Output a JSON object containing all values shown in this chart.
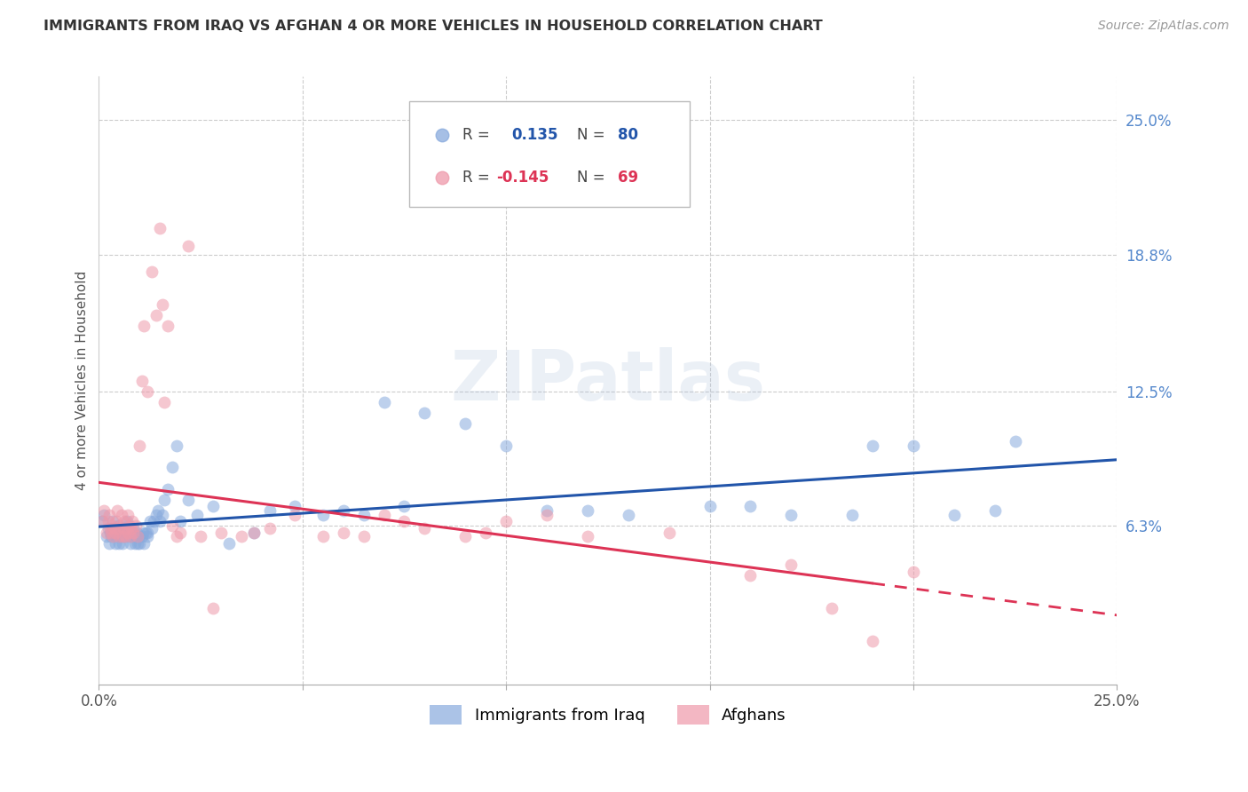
{
  "title": "IMMIGRANTS FROM IRAQ VS AFGHAN 4 OR MORE VEHICLES IN HOUSEHOLD CORRELATION CHART",
  "source": "Source: ZipAtlas.com",
  "ylabel": "4 or more Vehicles in Household",
  "xlim": [
    0.0,
    0.25
  ],
  "ylim": [
    -0.01,
    0.27
  ],
  "yticks": [
    0.063,
    0.125,
    0.188,
    0.25
  ],
  "ytick_labels": [
    "6.3%",
    "12.5%",
    "18.8%",
    "25.0%"
  ],
  "iraq_color": "#88aadd",
  "afghan_color": "#ee99aa",
  "iraq_line_color": "#2255aa",
  "afghan_line_color": "#dd3355",
  "watermark": "ZIPatlas",
  "iraq_x": [
    0.0008,
    0.0012,
    0.0018,
    0.0022,
    0.0025,
    0.0028,
    0.003,
    0.0032,
    0.0035,
    0.0038,
    0.004,
    0.0042,
    0.0045,
    0.0048,
    0.005,
    0.0052,
    0.0055,
    0.0058,
    0.006,
    0.0062,
    0.0065,
    0.0068,
    0.007,
    0.0072,
    0.0075,
    0.0078,
    0.008,
    0.0082,
    0.0085,
    0.0088,
    0.009,
    0.0092,
    0.0095,
    0.0098,
    0.01,
    0.0105,
    0.0108,
    0.011,
    0.0115,
    0.0118,
    0.012,
    0.0125,
    0.013,
    0.0135,
    0.014,
    0.0145,
    0.015,
    0.0155,
    0.016,
    0.017,
    0.018,
    0.019,
    0.02,
    0.022,
    0.024,
    0.028,
    0.032,
    0.038,
    0.042,
    0.048,
    0.06,
    0.065,
    0.075,
    0.09,
    0.1,
    0.11,
    0.13,
    0.15,
    0.17,
    0.185,
    0.2,
    0.21,
    0.22,
    0.055,
    0.07,
    0.08,
    0.12,
    0.16,
    0.19,
    0.225
  ],
  "iraq_y": [
    0.065,
    0.068,
    0.058,
    0.062,
    0.055,
    0.06,
    0.058,
    0.06,
    0.065,
    0.062,
    0.055,
    0.058,
    0.06,
    0.063,
    0.055,
    0.058,
    0.06,
    0.055,
    0.058,
    0.06,
    0.062,
    0.065,
    0.063,
    0.058,
    0.06,
    0.055,
    0.058,
    0.06,
    0.062,
    0.055,
    0.058,
    0.06,
    0.055,
    0.058,
    0.055,
    0.058,
    0.06,
    0.055,
    0.06,
    0.058,
    0.06,
    0.065,
    0.062,
    0.065,
    0.068,
    0.07,
    0.065,
    0.068,
    0.075,
    0.08,
    0.09,
    0.1,
    0.065,
    0.075,
    0.068,
    0.072,
    0.055,
    0.06,
    0.07,
    0.072,
    0.07,
    0.068,
    0.072,
    0.11,
    0.1,
    0.07,
    0.068,
    0.072,
    0.068,
    0.068,
    0.1,
    0.068,
    0.07,
    0.068,
    0.12,
    0.115,
    0.07,
    0.072,
    0.1,
    0.102
  ],
  "afghan_x": [
    0.0008,
    0.0012,
    0.0018,
    0.0022,
    0.0025,
    0.0028,
    0.003,
    0.0032,
    0.0035,
    0.0038,
    0.004,
    0.0042,
    0.0045,
    0.0048,
    0.005,
    0.0052,
    0.0055,
    0.0058,
    0.006,
    0.0062,
    0.0065,
    0.0068,
    0.007,
    0.0072,
    0.0075,
    0.0078,
    0.008,
    0.0082,
    0.0085,
    0.009,
    0.0095,
    0.01,
    0.0105,
    0.011,
    0.012,
    0.013,
    0.014,
    0.015,
    0.0155,
    0.016,
    0.017,
    0.018,
    0.019,
    0.02,
    0.022,
    0.025,
    0.028,
    0.03,
    0.035,
    0.038,
    0.042,
    0.048,
    0.055,
    0.06,
    0.065,
    0.07,
    0.075,
    0.08,
    0.09,
    0.095,
    0.1,
    0.11,
    0.12,
    0.14,
    0.16,
    0.17,
    0.18,
    0.19,
    0.2
  ],
  "afghan_y": [
    0.065,
    0.07,
    0.06,
    0.065,
    0.068,
    0.062,
    0.06,
    0.063,
    0.058,
    0.062,
    0.06,
    0.065,
    0.07,
    0.062,
    0.058,
    0.063,
    0.068,
    0.058,
    0.062,
    0.065,
    0.058,
    0.062,
    0.068,
    0.06,
    0.063,
    0.058,
    0.062,
    0.065,
    0.06,
    0.063,
    0.058,
    0.1,
    0.13,
    0.155,
    0.125,
    0.18,
    0.16,
    0.2,
    0.165,
    0.12,
    0.155,
    0.063,
    0.058,
    0.06,
    0.192,
    0.058,
    0.025,
    0.06,
    0.058,
    0.06,
    0.062,
    0.068,
    0.058,
    0.06,
    0.058,
    0.068,
    0.065,
    0.062,
    0.058,
    0.06,
    0.065,
    0.068,
    0.058,
    0.06,
    0.04,
    0.045,
    0.025,
    0.01,
    0.042
  ]
}
